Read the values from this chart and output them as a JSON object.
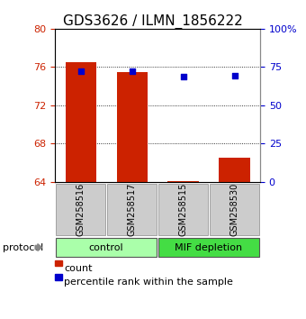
{
  "title": "GDS3626 / ILMN_1856222",
  "samples": [
    "GSM258516",
    "GSM258517",
    "GSM258515",
    "GSM258530"
  ],
  "bar_values": [
    76.5,
    75.5,
    64.1,
    66.5
  ],
  "percentile_values": [
    72.2,
    72.1,
    69.0,
    69.5
  ],
  "left_ylim": [
    64,
    80
  ],
  "left_yticks": [
    64,
    68,
    72,
    76,
    80
  ],
  "right_ylim": [
    0,
    100
  ],
  "right_yticks": [
    0,
    25,
    50,
    75,
    100
  ],
  "right_yticklabels": [
    "0",
    "25",
    "50",
    "75",
    "100%"
  ],
  "bar_color": "#cc2200",
  "percentile_color": "#0000cc",
  "bar_width": 0.6,
  "groups": [
    {
      "label": "control",
      "indices": [
        0,
        1
      ],
      "color": "#aaffaa"
    },
    {
      "label": "MIF depletion",
      "indices": [
        2,
        3
      ],
      "color": "#44dd44"
    }
  ],
  "protocol_label": "protocol",
  "legend_bar_label": "count",
  "legend_pct_label": "percentile rank within the sample",
  "grid_yticks": [
    68,
    72,
    76
  ],
  "background_color": "#ffffff",
  "left_tick_color": "#cc2200",
  "right_tick_color": "#0000cc"
}
